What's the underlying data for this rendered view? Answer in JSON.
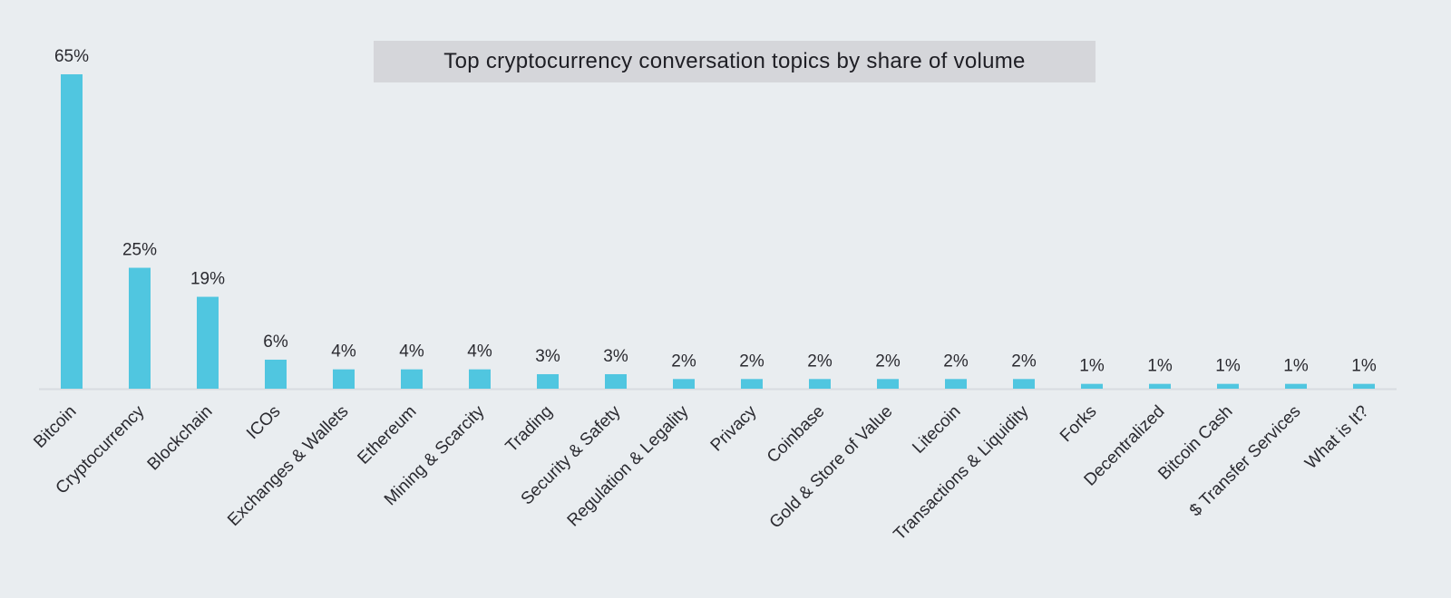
{
  "chart_data": {
    "type": "bar",
    "title": "Top cryptocurrency conversation topics by share of volume",
    "xlabel": "",
    "ylabel": "",
    "ylim": [
      0,
      65
    ],
    "grid": false,
    "categories": [
      "Bitcoin",
      "Cryptocurrency",
      "Blockchain",
      "ICOs",
      "Exchanges & Wallets",
      "Ethereum",
      "Mining & Scarcity",
      "Trading",
      "Security & Safety",
      "Regulation & Legality",
      "Privacy",
      "Coinbase",
      "Gold & Store of Value",
      "Litecoin",
      "Transactions & Liquidity",
      "Forks",
      "Decentralized",
      "Bitcoin Cash",
      "$ Transfer Services",
      "What is It?"
    ],
    "values": [
      65,
      25,
      19,
      6,
      4,
      4,
      4,
      3,
      3,
      2,
      2,
      2,
      2,
      2,
      2,
      1,
      1,
      1,
      1,
      1
    ],
    "data_labels": [
      "65%",
      "25%",
      "19%",
      "6%",
      "4%",
      "4%",
      "4%",
      "3%",
      "3%",
      "2%",
      "2%",
      "2%",
      "2%",
      "2%",
      "2%",
      "1%",
      "1%",
      "1%",
      "1%",
      "1%"
    ],
    "bar_color": "#50c6e0"
  }
}
